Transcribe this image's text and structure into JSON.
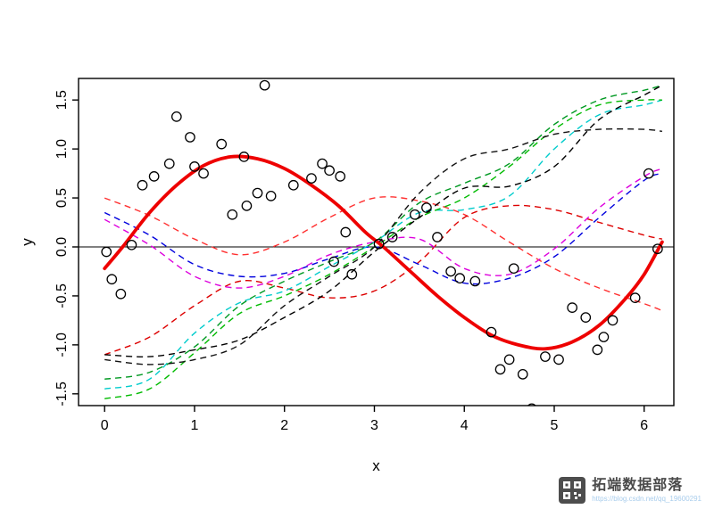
{
  "chart_data": {
    "type": "line",
    "title": "",
    "xlabel": "x",
    "ylabel": "y",
    "xlim": [
      -0.29,
      6.33
    ],
    "ylim": [
      -1.62,
      1.72
    ],
    "grid": false,
    "legend": "none",
    "x_ticks": [
      0,
      1,
      2,
      3,
      4,
      5,
      6
    ],
    "x_tick_labels": [
      "0",
      "1",
      "2",
      "3",
      "4",
      "5",
      "6"
    ],
    "y_ticks": [
      -1.5,
      -1.0,
      -0.5,
      0.0,
      0.5,
      1.0,
      1.5
    ],
    "y_tick_labels": [
      "-1.5",
      "-1.0",
      "-0.5",
      "0.0",
      "0.5",
      "1.0",
      "1.5"
    ],
    "zero_line": {
      "y": 0,
      "color": "#000000",
      "style": "solid"
    },
    "scatter": {
      "marker": "open-circle",
      "color": "#000000",
      "points": [
        [
          0.02,
          -0.05
        ],
        [
          0.08,
          -0.33
        ],
        [
          0.18,
          -0.48
        ],
        [
          0.3,
          0.02
        ],
        [
          0.42,
          0.63
        ],
        [
          0.55,
          0.72
        ],
        [
          0.72,
          0.85
        ],
        [
          0.8,
          1.33
        ],
        [
          0.95,
          1.12
        ],
        [
          1.0,
          0.82
        ],
        [
          1.1,
          0.75
        ],
        [
          1.3,
          1.05
        ],
        [
          1.42,
          0.33
        ],
        [
          1.55,
          0.92
        ],
        [
          1.58,
          0.42
        ],
        [
          1.7,
          0.55
        ],
        [
          1.78,
          1.65
        ],
        [
          1.85,
          0.52
        ],
        [
          2.1,
          0.63
        ],
        [
          2.3,
          0.7
        ],
        [
          2.42,
          0.85
        ],
        [
          2.5,
          0.78
        ],
        [
          2.55,
          -0.15
        ],
        [
          2.62,
          0.72
        ],
        [
          2.68,
          0.15
        ],
        [
          2.75,
          -0.28
        ],
        [
          3.05,
          0.03
        ],
        [
          3.2,
          0.1
        ],
        [
          3.45,
          0.33
        ],
        [
          3.58,
          0.4
        ],
        [
          3.7,
          0.1
        ],
        [
          3.85,
          -0.25
        ],
        [
          3.95,
          -0.32
        ],
        [
          4.12,
          -0.35
        ],
        [
          4.3,
          -0.87
        ],
        [
          4.4,
          -1.25
        ],
        [
          4.5,
          -1.15
        ],
        [
          4.55,
          -0.22
        ],
        [
          4.65,
          -1.3
        ],
        [
          4.75,
          -1.65
        ],
        [
          4.9,
          -1.12
        ],
        [
          5.05,
          -1.15
        ],
        [
          5.2,
          -0.62
        ],
        [
          5.35,
          -0.72
        ],
        [
          5.48,
          -1.05
        ],
        [
          5.55,
          -0.92
        ],
        [
          5.65,
          -0.75
        ],
        [
          5.9,
          -0.52
        ],
        [
          6.05,
          0.75
        ],
        [
          6.15,
          -0.02
        ]
      ]
    },
    "true_function": {
      "name": "sine-curve",
      "color": "#ee0000",
      "style": "solid",
      "width": 3.8,
      "x": [
        0,
        0.2,
        0.5,
        0.8,
        1.1,
        1.4,
        1.7,
        2.0,
        2.3,
        2.6,
        2.9,
        3.1,
        3.4,
        3.7,
        4.0,
        4.3,
        4.6,
        4.9,
        5.2,
        5.5,
        5.8,
        6.0,
        6.2
      ],
      "y": [
        -0.22,
        0.0,
        0.35,
        0.63,
        0.83,
        0.92,
        0.9,
        0.8,
        0.63,
        0.42,
        0.15,
        0.0,
        -0.25,
        -0.5,
        -0.72,
        -0.9,
        -1.0,
        -1.04,
        -0.97,
        -0.8,
        -0.52,
        -0.28,
        0.05
      ]
    },
    "sample_x": [
      0,
      0.5,
      1.0,
      1.5,
      2.0,
      2.5,
      3.0,
      3.5,
      4.0,
      4.5,
      5.0,
      5.5,
      6.0,
      6.2
    ],
    "sample_paths": [
      {
        "name": "red-dashed-1",
        "color": "#ff3030",
        "style": "dashed",
        "y": [
          0.5,
          0.32,
          0.08,
          -0.08,
          0.05,
          0.3,
          0.5,
          0.47,
          0.33,
          0.05,
          -0.22,
          -0.42,
          -0.58,
          -0.65
        ]
      },
      {
        "name": "red-dashed-2",
        "color": "#dd0000",
        "style": "dashed",
        "y": [
          -1.1,
          -0.92,
          -0.6,
          -0.35,
          -0.42,
          -0.52,
          -0.45,
          -0.15,
          0.3,
          0.42,
          0.38,
          0.25,
          0.12,
          0.08
        ]
      },
      {
        "name": "blue-dashed",
        "color": "#0000dd",
        "style": "dashed",
        "y": [
          0.35,
          0.12,
          -0.18,
          -0.3,
          -0.27,
          -0.12,
          0.0,
          -0.18,
          -0.37,
          -0.32,
          -0.1,
          0.3,
          0.68,
          0.75
        ]
      },
      {
        "name": "magenta-dashed",
        "color": "#dd00dd",
        "style": "dashed",
        "y": [
          0.28,
          0.02,
          -0.3,
          -0.42,
          -0.3,
          -0.08,
          0.05,
          0.08,
          -0.22,
          -0.28,
          -0.02,
          0.4,
          0.72,
          0.8
        ]
      },
      {
        "name": "cyan-dashed",
        "color": "#00cccc",
        "style": "dashed",
        "y": [
          -1.45,
          -1.35,
          -0.88,
          -0.57,
          -0.45,
          -0.2,
          0.05,
          0.35,
          0.38,
          0.52,
          1.0,
          1.35,
          1.45,
          1.5
        ]
      },
      {
        "name": "green-dashed-1",
        "color": "#00bb00",
        "style": "dashed",
        "y": [
          -1.55,
          -1.45,
          -1.08,
          -0.68,
          -0.5,
          -0.28,
          0.0,
          0.3,
          0.5,
          0.82,
          1.2,
          1.45,
          1.5,
          1.5
        ]
      },
      {
        "name": "green-dashed-2",
        "color": "#009922",
        "style": "dashed",
        "y": [
          -1.35,
          -1.28,
          -1.02,
          -0.6,
          -0.35,
          -0.15,
          0.05,
          0.45,
          0.65,
          0.85,
          1.25,
          1.5,
          1.6,
          1.65
        ]
      },
      {
        "name": "black-dashed-1",
        "color": "#000000",
        "style": "dashed",
        "y": [
          -1.1,
          -1.12,
          -1.05,
          -0.95,
          -0.72,
          -0.45,
          -0.05,
          0.3,
          0.6,
          0.62,
          0.82,
          1.3,
          1.55,
          1.65
        ]
      },
      {
        "name": "black-dashed-2",
        "color": "#111111",
        "style": "dashed",
        "y": [
          -1.15,
          -1.2,
          -1.15,
          -1.0,
          -0.6,
          -0.3,
          0.0,
          0.55,
          0.9,
          1.0,
          1.15,
          1.2,
          1.2,
          1.18
        ]
      }
    ]
  },
  "watermark": {
    "brand": "拓端数据部落",
    "url": "https://blog.csdn.net/qq_19600291"
  }
}
